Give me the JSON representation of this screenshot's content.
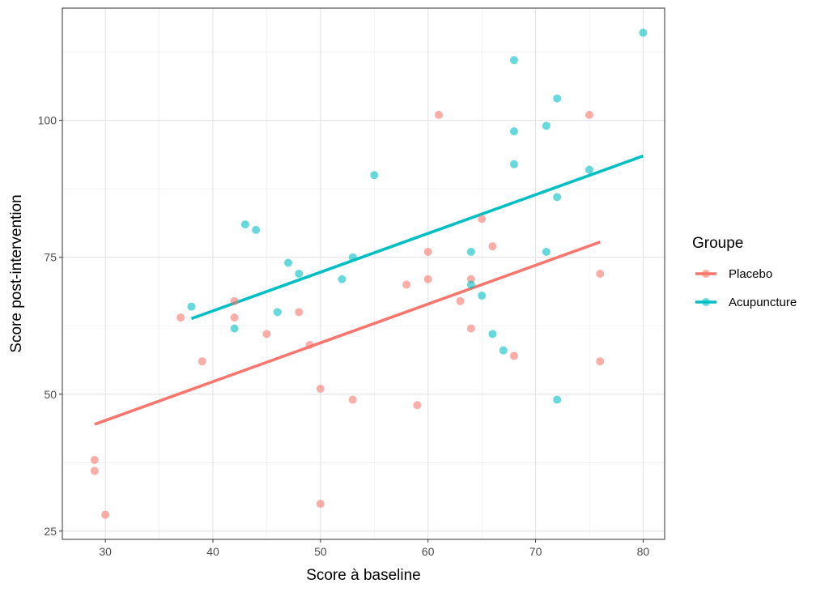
{
  "chart_data": {
    "type": "scatter",
    "xlabel": "Score à baseline",
    "ylabel": "Score post-intervention",
    "xlim": [
      26,
      82
    ],
    "ylim": [
      23.5,
      120.5
    ],
    "x_ticks": [
      30,
      40,
      50,
      60,
      70,
      80
    ],
    "y_ticks": [
      25,
      50,
      75,
      100
    ],
    "grid": true,
    "legend": {
      "title": "Groupe",
      "placement": "right"
    },
    "series": [
      {
        "name": "Placebo",
        "color": "#F8766D",
        "points": [
          [
            29,
            38
          ],
          [
            29,
            36
          ],
          [
            30,
            28
          ],
          [
            37,
            64
          ],
          [
            39,
            56
          ],
          [
            42,
            67
          ],
          [
            42,
            64
          ],
          [
            45,
            61
          ],
          [
            48,
            65
          ],
          [
            49,
            59
          ],
          [
            50,
            51
          ],
          [
            50,
            30
          ],
          [
            53,
            49
          ],
          [
            58,
            70
          ],
          [
            59,
            48
          ],
          [
            60,
            76
          ],
          [
            60,
            71
          ],
          [
            61,
            101
          ],
          [
            63,
            67
          ],
          [
            64,
            71
          ],
          [
            64,
            62
          ],
          [
            65,
            82
          ],
          [
            66,
            77
          ],
          [
            68,
            57
          ],
          [
            75,
            101
          ],
          [
            76,
            72
          ],
          [
            76,
            56
          ]
        ],
        "fit": {
          "x": [
            29,
            76
          ],
          "y": [
            44.5,
            77.8
          ]
        }
      },
      {
        "name": "Acupuncture",
        "color": "#00BFC4",
        "points": [
          [
            38,
            66
          ],
          [
            42,
            62
          ],
          [
            43,
            81
          ],
          [
            44,
            80
          ],
          [
            46,
            65
          ],
          [
            47,
            74
          ],
          [
            48,
            72
          ],
          [
            52,
            71
          ],
          [
            53,
            75
          ],
          [
            55,
            90
          ],
          [
            64,
            76
          ],
          [
            64,
            70
          ],
          [
            65,
            68
          ],
          [
            66,
            61
          ],
          [
            67,
            58
          ],
          [
            68,
            111
          ],
          [
            68,
            98
          ],
          [
            68,
            92
          ],
          [
            71,
            99
          ],
          [
            71,
            76
          ],
          [
            72,
            104
          ],
          [
            72,
            86
          ],
          [
            72,
            49
          ],
          [
            75,
            91
          ],
          [
            80,
            116
          ]
        ],
        "fit": {
          "x": [
            38,
            80
          ],
          "y": [
            63.8,
            93.5
          ]
        }
      }
    ]
  }
}
